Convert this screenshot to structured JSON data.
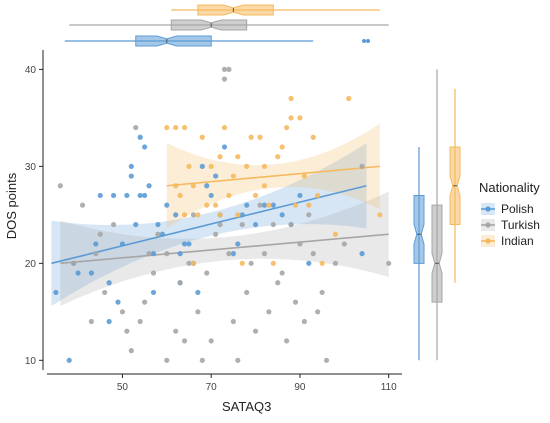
{
  "chart_data": {
    "type": "scatter",
    "xlabel": "SATAQ3",
    "ylabel": "DOS points",
    "xlim": [
      33,
      113
    ],
    "ylim": [
      9,
      42
    ],
    "x_ticks": [
      "50",
      "70",
      "90",
      "110"
    ],
    "y_ticks": [
      "10",
      "20",
      "30",
      "40"
    ],
    "grid": false,
    "legend": {
      "title": "Nationality",
      "placement": "right"
    },
    "series": [
      {
        "name": "Polish",
        "color": "#5b9bd5",
        "points": [
          [
            35,
            17
          ],
          [
            38,
            10
          ],
          [
            39,
            20
          ],
          [
            40,
            19
          ],
          [
            43,
            19
          ],
          [
            44,
            22
          ],
          [
            45,
            27
          ],
          [
            47,
            18
          ],
          [
            47,
            14
          ],
          [
            48,
            27
          ],
          [
            49,
            16
          ],
          [
            50,
            22
          ],
          [
            51,
            27
          ],
          [
            52,
            29
          ],
          [
            52,
            30
          ],
          [
            53,
            24
          ],
          [
            54,
            27
          ],
          [
            54,
            33
          ],
          [
            55,
            32
          ],
          [
            55,
            27
          ],
          [
            56,
            28
          ],
          [
            57,
            21
          ],
          [
            57,
            17
          ],
          [
            58,
            24
          ],
          [
            59,
            23
          ],
          [
            60,
            26
          ],
          [
            62,
            25
          ],
          [
            63,
            21
          ],
          [
            63,
            18
          ],
          [
            64,
            22
          ],
          [
            65,
            22
          ],
          [
            66,
            20
          ],
          [
            67,
            17
          ],
          [
            68,
            30
          ],
          [
            69,
            28
          ],
          [
            70,
            27
          ],
          [
            71,
            29
          ],
          [
            72,
            25
          ],
          [
            73,
            32
          ],
          [
            75,
            21
          ],
          [
            76,
            22
          ],
          [
            77,
            25
          ],
          [
            78,
            26
          ],
          [
            80,
            24
          ],
          [
            82,
            26
          ],
          [
            84,
            26
          ],
          [
            86,
            25
          ],
          [
            88,
            24
          ],
          [
            90,
            27
          ],
          [
            92,
            20
          ],
          [
            104,
            21
          ]
        ],
        "trend": {
          "x": [
            34,
            105
          ],
          "y": [
            20,
            28
          ]
        },
        "boxplot_x": {
          "min": 37,
          "q1": 53,
          "median": 60,
          "q3": 70,
          "max": 93
        },
        "boxplot_y": {
          "min": 10,
          "q1": 20,
          "median": 23,
          "q3": 27,
          "max": 32
        }
      },
      {
        "name": "Turkish",
        "color": "#a6a6a6",
        "points": [
          [
            36,
            28
          ],
          [
            39,
            20
          ],
          [
            41,
            26
          ],
          [
            43,
            14
          ],
          [
            44,
            21
          ],
          [
            45,
            23
          ],
          [
            46,
            17
          ],
          [
            48,
            24
          ],
          [
            50,
            15
          ],
          [
            51,
            13
          ],
          [
            52,
            11
          ],
          [
            53,
            34
          ],
          [
            54,
            14
          ],
          [
            55,
            16
          ],
          [
            56,
            21
          ],
          [
            57,
            19
          ],
          [
            58,
            23
          ],
          [
            60,
            21
          ],
          [
            60,
            10
          ],
          [
            62,
            13
          ],
          [
            63,
            18
          ],
          [
            64,
            12
          ],
          [
            65,
            20
          ],
          [
            66,
            25
          ],
          [
            67,
            15
          ],
          [
            68,
            10
          ],
          [
            69,
            19
          ],
          [
            70,
            12
          ],
          [
            71,
            23
          ],
          [
            72,
            24
          ],
          [
            73,
            40
          ],
          [
            73,
            39
          ],
          [
            74,
            40
          ],
          [
            74,
            21
          ],
          [
            75,
            14
          ],
          [
            76,
            10
          ],
          [
            77,
            24
          ],
          [
            78,
            17
          ],
          [
            79,
            20
          ],
          [
            80,
            13
          ],
          [
            81,
            26
          ],
          [
            82,
            21
          ],
          [
            83,
            15
          ],
          [
            84,
            24
          ],
          [
            85,
            18
          ],
          [
            86,
            19
          ],
          [
            87,
            12
          ],
          [
            88,
            24
          ],
          [
            89,
            16
          ],
          [
            90,
            22
          ],
          [
            91,
            14
          ],
          [
            92,
            25
          ],
          [
            93,
            21
          ],
          [
            94,
            15
          ],
          [
            95,
            17
          ],
          [
            96,
            10
          ],
          [
            98,
            20
          ],
          [
            100,
            22
          ],
          [
            104,
            30
          ],
          [
            110,
            20
          ]
        ],
        "trend": {
          "x": [
            36,
            110
          ],
          "y": [
            20,
            23
          ]
        },
        "boxplot_x": {
          "min": 38,
          "q1": 61,
          "median": 70,
          "q3": 78,
          "max": 110
        },
        "boxplot_y": {
          "min": 10,
          "q1": 16,
          "median": 20,
          "q3": 26,
          "max": 40
        }
      },
      {
        "name": "Indian",
        "color": "#f5b95e",
        "points": [
          [
            60,
            34
          ],
          [
            62,
            34
          ],
          [
            62,
            28
          ],
          [
            63,
            27
          ],
          [
            64,
            34
          ],
          [
            64,
            25
          ],
          [
            65,
            30
          ],
          [
            66,
            28
          ],
          [
            66,
            20
          ],
          [
            67,
            25
          ],
          [
            68,
            33
          ],
          [
            69,
            26
          ],
          [
            70,
            30
          ],
          [
            71,
            26
          ],
          [
            72,
            31
          ],
          [
            72,
            25
          ],
          [
            73,
            34
          ],
          [
            74,
            27
          ],
          [
            75,
            29
          ],
          [
            76,
            31
          ],
          [
            76,
            25
          ],
          [
            77,
            20
          ],
          [
            78,
            30
          ],
          [
            79,
            33
          ],
          [
            80,
            27
          ],
          [
            81,
            33
          ],
          [
            82,
            28
          ],
          [
            82,
            30
          ],
          [
            83,
            26
          ],
          [
            84,
            20
          ],
          [
            85,
            31
          ],
          [
            86,
            32
          ],
          [
            87,
            34
          ],
          [
            88,
            35
          ],
          [
            88,
            37
          ],
          [
            89,
            26
          ],
          [
            90,
            35
          ],
          [
            91,
            29
          ],
          [
            92,
            26
          ],
          [
            93,
            33
          ],
          [
            94,
            27
          ],
          [
            95,
            20
          ],
          [
            98,
            23
          ],
          [
            101,
            37
          ],
          [
            108,
            25
          ]
        ],
        "trend": {
          "x": [
            60,
            108
          ],
          "y": [
            28,
            30
          ]
        },
        "boxplot_x": {
          "min": 61,
          "q1": 67,
          "median": 75,
          "q3": 84,
          "max": 108
        },
        "boxplot_y": {
          "min": 18,
          "q1": 24,
          "median": 28,
          "q3": 32,
          "max": 38
        }
      }
    ]
  }
}
